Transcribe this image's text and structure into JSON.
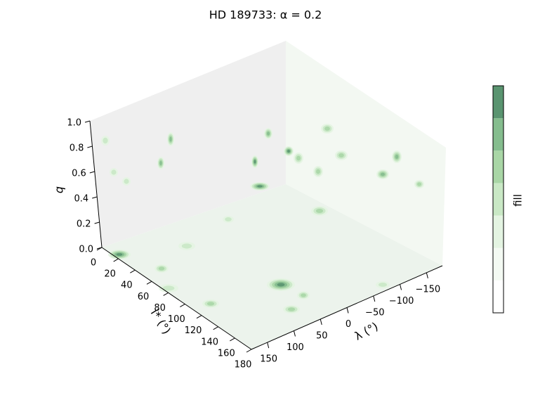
{
  "chart_data": {
    "type": "contour3d",
    "title": "HD 189733:  α = 0.2",
    "xlabel": "λ (°)",
    "xlim": [
      180,
      -180
    ],
    "xticks": [
      {
        "value": 150,
        "label": "150"
      },
      {
        "value": 100,
        "label": "100"
      },
      {
        "value": 50,
        "label": "50"
      },
      0,
      {
        "value": -50,
        "label": "−50"
      },
      {
        "value": -100,
        "label": "−100"
      },
      {
        "value": -150,
        "label": "−150"
      }
    ],
    "ylabel": "i* (°)",
    "ylim": [
      0,
      180
    ],
    "yticks": [
      0,
      20,
      40,
      60,
      80,
      100,
      120,
      140,
      160,
      180
    ],
    "zlabel": "q",
    "zlim": [
      0,
      1
    ],
    "zticks": [
      {
        "value": 0,
        "label": "0.0"
      },
      0.2,
      0.4,
      0.6,
      0.8,
      {
        "value": 1,
        "label": "1.0"
      }
    ],
    "colorbar": {
      "label": "fill",
      "colors": [
        "#ffffff",
        "#f4faf3",
        "#e4f4e2",
        "#c9e8c5",
        "#a9d6a6",
        "#85bd8e",
        "#5a9470"
      ]
    }
  }
}
